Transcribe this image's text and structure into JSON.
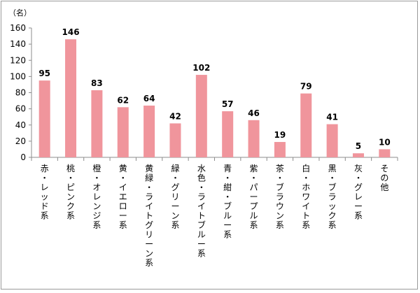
{
  "chart_data": {
    "type": "bar",
    "unit_label": "（名）",
    "categories": [
      "赤・レッド系",
      "桃・ピンク系",
      "橙・オレンジ系",
      "黄・イエロー系",
      "黄緑・ライトグリーン系",
      "緑・グリーン系",
      "水色・ライトブルー系",
      "青・紺・ブルー系",
      "紫・パープル系",
      "茶・ブラウン系",
      "白・ホワイト系",
      "黒・ブラック系",
      "灰・グレー系",
      "その他"
    ],
    "values": [
      95,
      146,
      83,
      62,
      64,
      42,
      102,
      57,
      46,
      19,
      79,
      41,
      5,
      10
    ],
    "ylim": [
      0,
      160
    ],
    "yticks": [
      0,
      20,
      40,
      60,
      80,
      100,
      120,
      140,
      160
    ],
    "grid": false,
    "legend": "none",
    "bar_color": "#f0959c"
  }
}
